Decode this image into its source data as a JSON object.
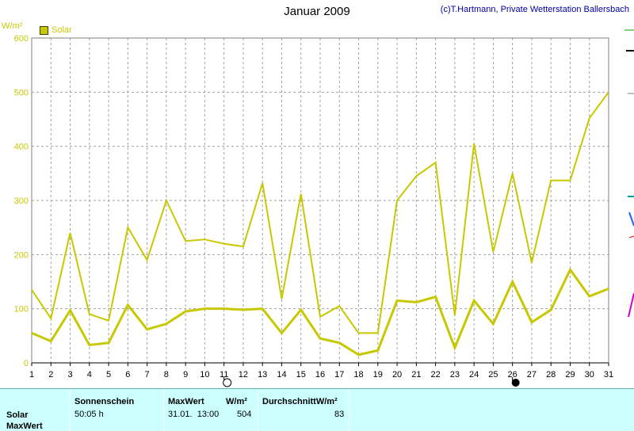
{
  "header": {
    "title": "Januar 2009",
    "credit": "(c)T.Hartmann, Private Wetterstation Ballersbach",
    "unit": "W/m²",
    "legend_label": "Solar"
  },
  "colors": {
    "series": "#c8c800",
    "grid": "#a0a0a0",
    "panel": "#ccffff"
  },
  "chart_data": {
    "type": "line",
    "title": "Januar 2009",
    "ylabel": "W/m²",
    "xlim": [
      1,
      31
    ],
    "ylim": [
      0,
      600
    ],
    "yticks": [
      0,
      100,
      200,
      300,
      400,
      500,
      600
    ],
    "x": [
      1,
      2,
      3,
      4,
      5,
      6,
      7,
      8,
      9,
      10,
      11,
      12,
      13,
      14,
      15,
      16,
      17,
      18,
      19,
      20,
      21,
      22,
      23,
      24,
      25,
      26,
      27,
      28,
      29,
      30,
      31
    ],
    "series": [
      {
        "name": "Solar",
        "role": "max",
        "values": [
          135,
          82,
          240,
          90,
          78,
          250,
          190,
          300,
          225,
          228,
          220,
          215,
          332,
          118,
          312,
          85,
          105,
          55,
          55,
          300,
          345,
          370,
          88,
          405,
          205,
          350,
          185,
          337,
          337,
          452,
          500
        ]
      },
      {
        "name": "Solar",
        "role": "mean",
        "values": [
          55,
          40,
          97,
          33,
          37,
          107,
          62,
          72,
          95,
          100,
          100,
          98,
          100,
          55,
          98,
          45,
          37,
          15,
          23,
          115,
          112,
          122,
          28,
          115,
          72,
          150,
          75,
          98,
          172,
          123,
          137
        ]
      }
    ],
    "moon_phases": [
      {
        "day": 11,
        "phase": "full"
      },
      {
        "day": 26,
        "phase": "new"
      }
    ],
    "grid": true,
    "legend": "top-left"
  },
  "summary": {
    "row_label": "Solar",
    "row_label2": "MaxWert",
    "sunshine_header": "Sonnenschein",
    "sunshine_value": "50:05 h",
    "max_header": "MaxWert",
    "max_unit": "W/m²",
    "max_date": "31.01.  13:00",
    "max_value": "504",
    "avg_header": "DurchschnittW/m²",
    "avg_value": "83"
  }
}
